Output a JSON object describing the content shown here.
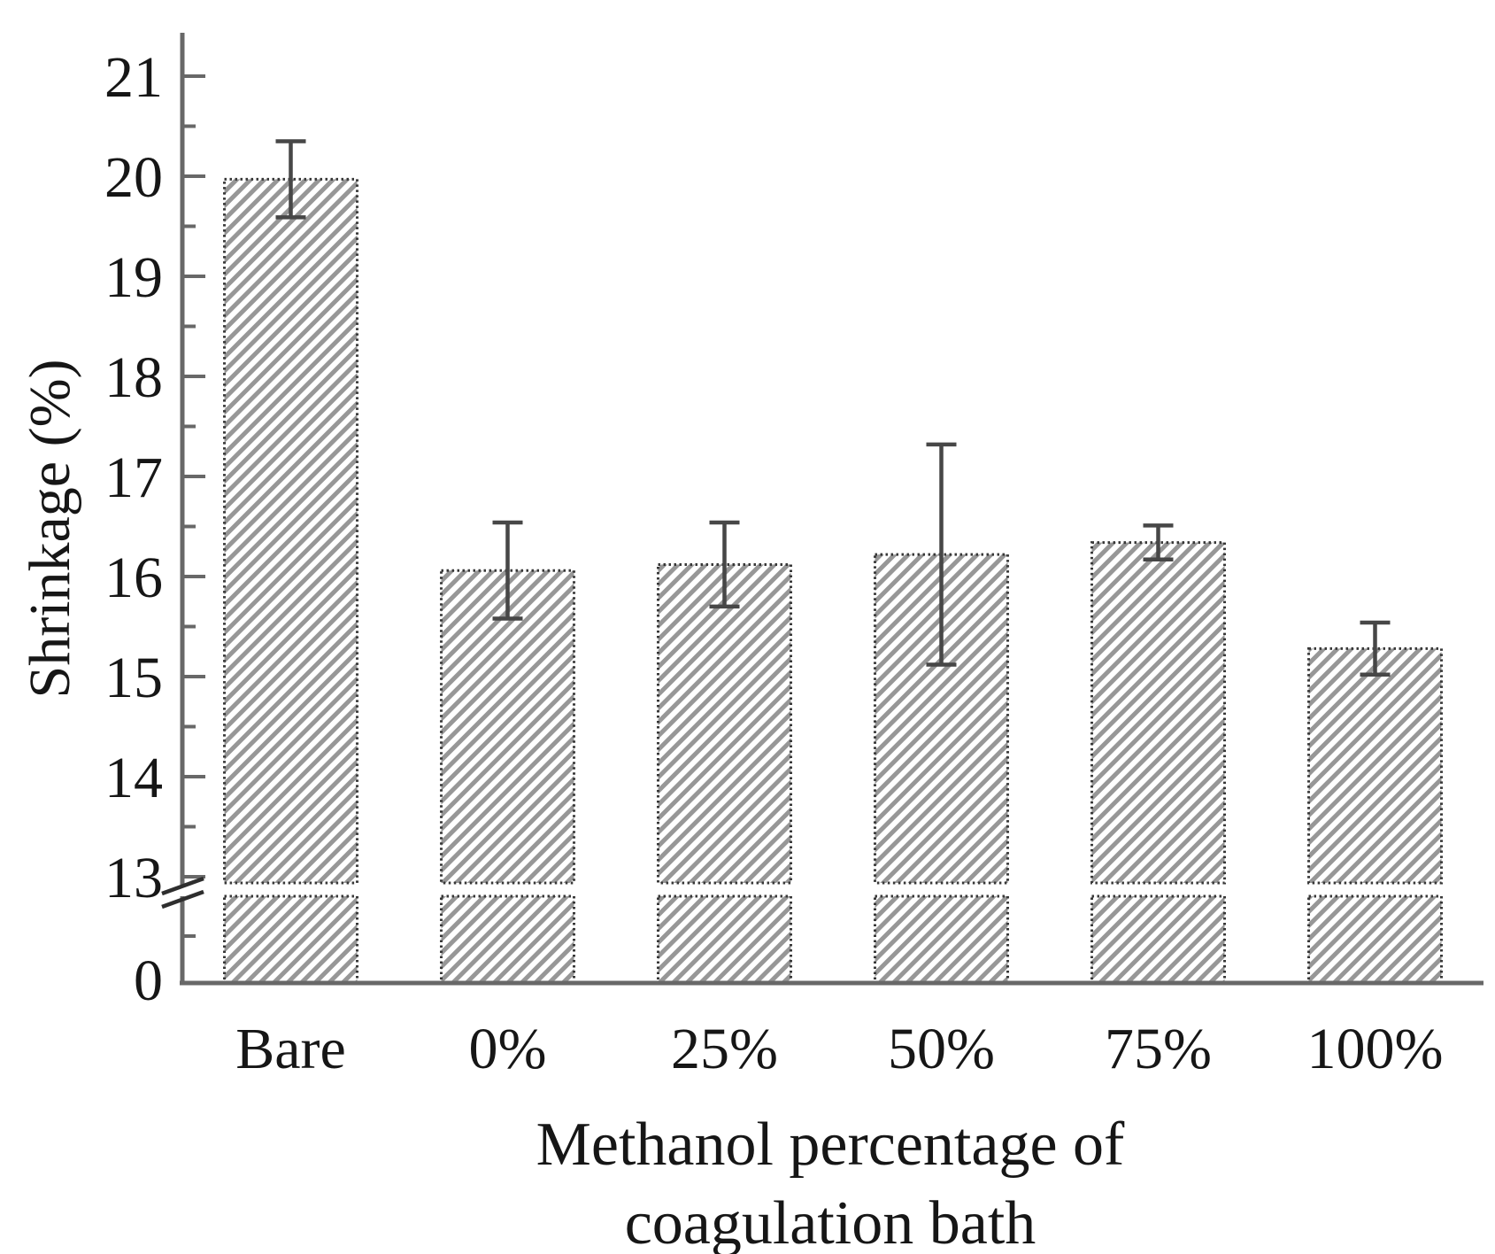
{
  "chart_data": {
    "type": "bar",
    "title": "",
    "xlabel": "Methanol percentage of coagulation bath",
    "xlabel_line1": "Methanol percentage of",
    "xlabel_line2": "coagulation bath",
    "ylabel": "Shrinkage (%)",
    "categories": [
      "Bare",
      "0%",
      "25%",
      "50%",
      "75%",
      "100%"
    ],
    "values": [
      19.97,
      16.06,
      16.12,
      16.22,
      16.34,
      15.28
    ],
    "errors": [
      0.38,
      0.48,
      0.42,
      1.1,
      0.17,
      0.26
    ],
    "y_major_ticks": [
      13,
      14,
      15,
      16,
      17,
      18,
      19,
      20,
      21
    ],
    "y_minor_step": 0.5,
    "y_bottom_tick_label": "0",
    "axis_break": true,
    "axis_break_between": [
      0,
      13
    ],
    "ylim_upper_segment": [
      13,
      21.4
    ],
    "grid": false,
    "legend": null,
    "bar_style": "diagonal-hatch",
    "colors": {
      "background": "#ffffff",
      "axis": "#686868",
      "text": "#161616",
      "bar_edge": "#383838",
      "hatch_line": "#979797",
      "hatch_background": "#ffffff",
      "error_bar": "#474747"
    }
  }
}
